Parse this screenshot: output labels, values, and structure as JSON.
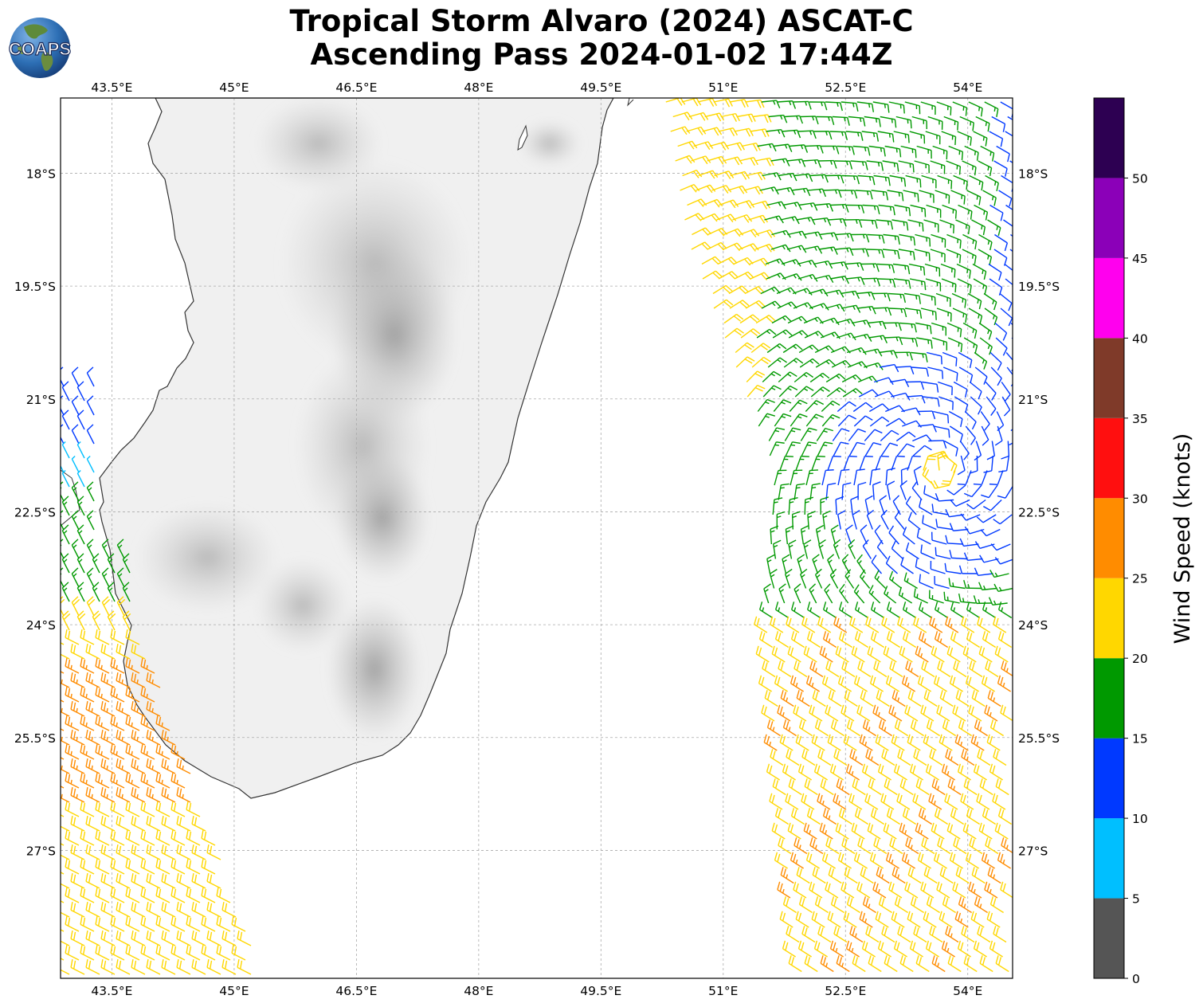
{
  "title": {
    "line1": "Tropical Storm Alvaro (2024) ASCAT-C",
    "line2": "Ascending Pass 2024-01-02 17:44Z"
  },
  "logo": {
    "text": "COAPS",
    "icon": "globe-icon"
  },
  "map": {
    "lon_range": [
      42.87,
      54.55
    ],
    "lat_range": [
      -28.7,
      -17.0
    ],
    "x_ticks": [
      "43.5°E",
      "45°E",
      "46.5°E",
      "48°E",
      "49.5°E",
      "51°E",
      "52.5°E",
      "54°E"
    ],
    "x_tick_values": [
      43.5,
      45,
      46.5,
      48,
      49.5,
      51,
      52.5,
      54
    ],
    "y_ticks": [
      "18°S",
      "19.5°S",
      "21°S",
      "22.5°S",
      "24°S",
      "25.5°S",
      "27°S"
    ],
    "y_tick_values": [
      -18,
      -19.5,
      -21,
      -22.5,
      -24,
      -25.5,
      -27
    ],
    "grid": true,
    "land_shading": "grayscale-elevation"
  },
  "colorbar": {
    "label": "Wind Speed (knots)",
    "ticks": [
      "0",
      "5",
      "10",
      "15",
      "20",
      "25",
      "30",
      "35",
      "40",
      "45",
      "50"
    ],
    "bins": [
      {
        "min": 0,
        "max": 5,
        "color": "#555555"
      },
      {
        "min": 5,
        "max": 10,
        "color": "#00bfff"
      },
      {
        "min": 10,
        "max": 15,
        "color": "#0039ff"
      },
      {
        "min": 15,
        "max": 20,
        "color": "#009900"
      },
      {
        "min": 20,
        "max": 25,
        "color": "#ffd700"
      },
      {
        "min": 25,
        "max": 30,
        "color": "#ff8c00"
      },
      {
        "min": 30,
        "max": 35,
        "color": "#ff0f0f"
      },
      {
        "min": 35,
        "max": 40,
        "color": "#7f3a29"
      },
      {
        "min": 40,
        "max": 45,
        "color": "#ff00ee"
      },
      {
        "min": 45,
        "max": 50,
        "color": "#8b00b8"
      },
      {
        "min": 50,
        "max": 55,
        "color": "#2d0052"
      }
    ]
  }
}
